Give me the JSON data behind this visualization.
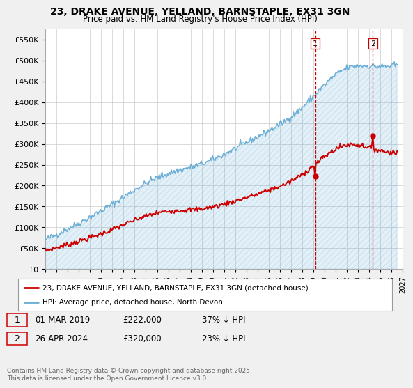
{
  "title_line1": "23, DRAKE AVENUE, YELLAND, BARNSTAPLE, EX31 3GN",
  "title_line2": "Price paid vs. HM Land Registry's House Price Index (HPI)",
  "ylim": [
    0,
    575000
  ],
  "yticks": [
    0,
    50000,
    100000,
    150000,
    200000,
    250000,
    300000,
    350000,
    400000,
    450000,
    500000,
    550000
  ],
  "ytick_labels": [
    "£0",
    "£50K",
    "£100K",
    "£150K",
    "£200K",
    "£250K",
    "£300K",
    "£350K",
    "£400K",
    "£450K",
    "£500K",
    "£550K"
  ],
  "hpi_color": "#6baed6",
  "price_color": "#cc0000",
  "background_color": "#f0f0f0",
  "vline_color": "#cc0000",
  "annotation1": {
    "label": "1",
    "date_x": 2019.17,
    "y": 222000,
    "date_str": "01-MAR-2019",
    "price": "£222,000",
    "pct": "37% ↓ HPI"
  },
  "annotation2": {
    "label": "2",
    "date_x": 2024.33,
    "y": 320000,
    "date_str": "26-APR-2024",
    "price": "£320,000",
    "pct": "23% ↓ HPI"
  },
  "legend_line1": "23, DRAKE AVENUE, YELLAND, BARNSTAPLE, EX31 3GN (detached house)",
  "legend_line2": "HPI: Average price, detached house, North Devon",
  "footer": "Contains HM Land Registry data © Crown copyright and database right 2025.\nThis data is licensed under the Open Government Licence v3.0.",
  "xlim": [
    1995,
    2027
  ],
  "xticks": [
    1995,
    1996,
    1997,
    1998,
    1999,
    2000,
    2001,
    2002,
    2003,
    2004,
    2005,
    2006,
    2007,
    2008,
    2009,
    2010,
    2011,
    2012,
    2013,
    2014,
    2015,
    2016,
    2017,
    2018,
    2019,
    2020,
    2021,
    2022,
    2023,
    2024,
    2025,
    2026,
    2027
  ]
}
